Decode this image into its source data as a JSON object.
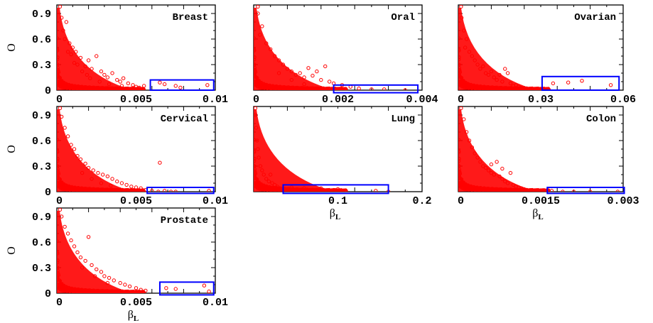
{
  "chart_data": [
    {
      "type": "scatter",
      "title": "Breast",
      "xlabel": "",
      "ylabel": "O",
      "xlim": [
        0,
        0.01
      ],
      "ylim": [
        0,
        1
      ],
      "xticks": [
        "0",
        "0.005",
        "0.01"
      ],
      "yticks": [
        "0",
        "0.3",
        "0.6",
        "0.9"
      ],
      "marker_color": "#ff0000",
      "box_color": "#0000ff",
      "highlight_box": {
        "x": [
          0.0059,
          0.0099
        ],
        "y": [
          0.0,
          0.12
        ]
      },
      "points": [
        [
          0.0002,
          0.98
        ],
        [
          0.0003,
          0.85
        ],
        [
          0.0004,
          0.7
        ],
        [
          0.0006,
          0.8
        ],
        [
          0.0005,
          0.6
        ],
        [
          0.0008,
          0.55
        ],
        [
          0.001,
          0.5
        ],
        [
          0.0009,
          0.42
        ],
        [
          0.0012,
          0.45
        ],
        [
          0.0015,
          0.38
        ],
        [
          0.0013,
          0.3
        ],
        [
          0.0018,
          0.28
        ],
        [
          0.002,
          0.35
        ],
        [
          0.0022,
          0.25
        ],
        [
          0.0025,
          0.4
        ],
        [
          0.0028,
          0.22
        ],
        [
          0.003,
          0.18
        ],
        [
          0.0032,
          0.15
        ],
        [
          0.0035,
          0.2
        ],
        [
          0.0038,
          0.12
        ],
        [
          0.004,
          0.1
        ],
        [
          0.0042,
          0.14
        ],
        [
          0.0045,
          0.08
        ],
        [
          0.0048,
          0.06
        ],
        [
          0.005,
          0.04
        ],
        [
          0.0052,
          0.03
        ],
        [
          0.0055,
          0.05
        ],
        [
          0.0065,
          0.09
        ],
        [
          0.0068,
          0.07
        ],
        [
          0.0075,
          0.05
        ],
        [
          0.0078,
          0.03
        ],
        [
          0.0095,
          0.06
        ],
        [
          0.0016,
          0.22
        ],
        [
          0.0021,
          0.14
        ],
        [
          0.0027,
          0.1
        ],
        [
          0.0033,
          0.07
        ],
        [
          0.0041,
          0.05
        ],
        [
          0.0011,
          0.32
        ],
        [
          0.0007,
          0.45
        ],
        [
          0.0019,
          0.18
        ]
      ]
    },
    {
      "type": "scatter",
      "title": "Oral",
      "xlabel": "",
      "ylabel": "",
      "xlim": [
        0,
        0.004
      ],
      "ylim": [
        0,
        1
      ],
      "xticks": [
        "0",
        "0.002",
        "0.004"
      ],
      "yticks": [],
      "marker_color": "#ff0000",
      "box_color": "#0000ff",
      "highlight_box": {
        "x": [
          0.0019,
          0.0039
        ],
        "y": [
          -0.03,
          0.06
        ]
      },
      "points": [
        [
          0.0001,
          0.98
        ],
        [
          0.0001,
          0.9
        ],
        [
          0.0002,
          0.75
        ],
        [
          0.00015,
          0.65
        ],
        [
          0.0003,
          0.55
        ],
        [
          0.0004,
          0.48
        ],
        [
          0.0005,
          0.4
        ],
        [
          0.0006,
          0.35
        ],
        [
          0.0007,
          0.3
        ],
        [
          0.0008,
          0.25
        ],
        [
          0.0009,
          0.22
        ],
        [
          0.001,
          0.18
        ],
        [
          0.0011,
          0.2
        ],
        [
          0.0012,
          0.15
        ],
        [
          0.0013,
          0.26
        ],
        [
          0.0014,
          0.17
        ],
        [
          0.0015,
          0.22
        ],
        [
          0.0016,
          0.12
        ],
        [
          0.0017,
          0.28
        ],
        [
          0.0018,
          0.1
        ],
        [
          0.0019,
          0.08
        ],
        [
          0.0021,
          0.06
        ],
        [
          0.0023,
          0.04
        ],
        [
          0.0025,
          0.02
        ],
        [
          0.0028,
          0.01
        ],
        [
          0.0031,
          0.01
        ],
        [
          0.0036,
          0.0
        ],
        [
          0.0012,
          0.07
        ],
        [
          0.0009,
          0.12
        ],
        [
          0.0006,
          0.2
        ]
      ]
    },
    {
      "type": "scatter",
      "title": "Ovarian",
      "xlabel": "",
      "ylabel": "",
      "xlim": [
        0,
        0.06
      ],
      "ylim": [
        0,
        1
      ],
      "xticks": [
        "0",
        "0.03",
        "0.06"
      ],
      "yticks": [],
      "marker_color": "#ff0000",
      "box_color": "#0000ff",
      "highlight_box": {
        "x": [
          0.0305,
          0.0585
        ],
        "y": [
          0.0,
          0.16
        ]
      },
      "points": [
        [
          0.001,
          0.98
        ],
        [
          0.0012,
          0.85
        ],
        [
          0.002,
          0.7
        ],
        [
          0.003,
          0.6
        ],
        [
          0.0025,
          0.5
        ],
        [
          0.004,
          0.45
        ],
        [
          0.005,
          0.4
        ],
        [
          0.006,
          0.35
        ],
        [
          0.007,
          0.3
        ],
        [
          0.008,
          0.25
        ],
        [
          0.009,
          0.28
        ],
        [
          0.01,
          0.2
        ],
        [
          0.011,
          0.18
        ],
        [
          0.012,
          0.22
        ],
        [
          0.013,
          0.15
        ],
        [
          0.014,
          0.12
        ],
        [
          0.015,
          0.18
        ],
        [
          0.016,
          0.1
        ],
        [
          0.017,
          0.25
        ],
        [
          0.018,
          0.2
        ],
        [
          0.019,
          0.08
        ],
        [
          0.02,
          0.05
        ],
        [
          0.021,
          0.06
        ],
        [
          0.022,
          0.04
        ],
        [
          0.023,
          0.03
        ],
        [
          0.024,
          0.02
        ],
        [
          0.0345,
          0.08
        ],
        [
          0.04,
          0.09
        ],
        [
          0.045,
          0.11
        ],
        [
          0.0555,
          0.06
        ]
      ]
    },
    {
      "type": "scatter",
      "title": "Cervical",
      "xlabel": "",
      "ylabel": "O",
      "xlim": [
        0,
        0.01
      ],
      "ylim": [
        0,
        1
      ],
      "xticks": [
        "0",
        "0.005",
        "0.01"
      ],
      "yticks": [
        "0",
        "0.3",
        "0.6",
        "0.9"
      ],
      "marker_color": "#ff0000",
      "box_color": "#0000ff",
      "highlight_box": {
        "x": [
          0.0057,
          0.0099
        ],
        "y": [
          -0.02,
          0.05
        ]
      },
      "points": [
        [
          0.0002,
          0.98
        ],
        [
          0.0003,
          0.88
        ],
        [
          0.0005,
          0.75
        ],
        [
          0.0007,
          0.65
        ],
        [
          0.0009,
          0.55
        ],
        [
          0.0011,
          0.5
        ],
        [
          0.0013,
          0.42
        ],
        [
          0.0015,
          0.38
        ],
        [
          0.0018,
          0.33
        ],
        [
          0.002,
          0.28
        ],
        [
          0.0023,
          0.25
        ],
        [
          0.0026,
          0.22
        ],
        [
          0.0029,
          0.2
        ],
        [
          0.0032,
          0.18
        ],
        [
          0.0035,
          0.15
        ],
        [
          0.0038,
          0.12
        ],
        [
          0.0041,
          0.1
        ],
        [
          0.0044,
          0.08
        ],
        [
          0.0047,
          0.06
        ],
        [
          0.005,
          0.05
        ],
        [
          0.0053,
          0.04
        ],
        [
          0.0056,
          0.02
        ],
        [
          0.0065,
          0.34
        ],
        [
          0.006,
          0.01
        ],
        [
          0.0064,
          0.0
        ],
        [
          0.0068,
          0.01
        ],
        [
          0.0072,
          0.0
        ],
        [
          0.0075,
          0.0
        ],
        [
          0.0096,
          0.01
        ],
        [
          0.0016,
          0.22
        ],
        [
          0.0022,
          0.15
        ],
        [
          0.0028,
          0.1
        ],
        [
          0.0034,
          0.07
        ]
      ]
    },
    {
      "type": "scatter",
      "title": "Lung",
      "xlabel": "βL",
      "ylabel": "",
      "xlim": [
        0,
        0.2
      ],
      "ylim": [
        0,
        1
      ],
      "xticks": [
        "0.1",
        "0.2"
      ],
      "yticks": [],
      "marker_color": "#ff0000",
      "box_color": "#0000ff",
      "highlight_box": {
        "x": [
          0.035,
          0.16
        ],
        "y": [
          -0.02,
          0.08
        ]
      },
      "points": [
        [
          0.002,
          0.98
        ],
        [
          0.002,
          0.9
        ],
        [
          0.003,
          0.75
        ],
        [
          0.004,
          0.6
        ],
        [
          0.005,
          0.5
        ],
        [
          0.006,
          0.4
        ],
        [
          0.008,
          0.3
        ],
        [
          0.01,
          0.25
        ],
        [
          0.012,
          0.2
        ],
        [
          0.015,
          0.15
        ],
        [
          0.018,
          0.12
        ],
        [
          0.02,
          0.2
        ],
        [
          0.022,
          0.1
        ],
        [
          0.025,
          0.08
        ],
        [
          0.028,
          0.06
        ],
        [
          0.03,
          0.04
        ],
        [
          0.04,
          0.03
        ],
        [
          0.045,
          0.05
        ],
        [
          0.06,
          0.04
        ],
        [
          0.075,
          0.02
        ],
        [
          0.08,
          0.04
        ],
        [
          0.095,
          0.02
        ],
        [
          0.1,
          0.03
        ],
        [
          0.145,
          0.01
        ],
        [
          0.16,
          0.0
        ]
      ]
    },
    {
      "type": "scatter",
      "title": "Colon",
      "xlabel": "βL",
      "ylabel": "",
      "xlim": [
        0,
        0.003
      ],
      "ylim": [
        0,
        1
      ],
      "xticks": [
        "0",
        "0.0015",
        "0.003"
      ],
      "yticks": [],
      "marker_color": "#ff0000",
      "box_color": "#0000ff",
      "highlight_box": {
        "x": [
          0.00162,
          0.00302
        ],
        "y": [
          -0.02,
          0.05
        ]
      },
      "points": [
        [
          5e-05,
          0.98
        ],
        [
          0.0001,
          0.85
        ],
        [
          0.00015,
          0.7
        ],
        [
          0.0002,
          0.6
        ],
        [
          0.00025,
          0.52
        ],
        [
          0.0003,
          0.45
        ],
        [
          0.00035,
          0.4
        ],
        [
          0.0004,
          0.35
        ],
        [
          0.00045,
          0.3
        ],
        [
          0.0005,
          0.28
        ],
        [
          0.00055,
          0.25
        ],
        [
          0.0006,
          0.22
        ],
        [
          0.00065,
          0.2
        ],
        [
          0.0007,
          0.35
        ],
        [
          0.00075,
          0.18
        ],
        [
          0.0008,
          0.15
        ],
        [
          0.00085,
          0.12
        ],
        [
          0.0009,
          0.1
        ],
        [
          0.00095,
          0.22
        ],
        [
          0.001,
          0.08
        ],
        [
          0.00105,
          0.06
        ],
        [
          0.0011,
          0.05
        ],
        [
          0.00115,
          0.04
        ],
        [
          0.0012,
          0.03
        ],
        [
          0.00125,
          0.02
        ],
        [
          0.0013,
          0.01
        ],
        [
          0.0014,
          0.01
        ],
        [
          0.0017,
          0.01
        ],
        [
          0.0019,
          0.0
        ],
        [
          0.0021,
          0.0
        ],
        [
          0.0024,
          0.0
        ],
        [
          0.0029,
          0.0
        ],
        [
          0.0008,
          0.27
        ],
        [
          0.0006,
          0.32
        ]
      ]
    },
    {
      "type": "scatter",
      "title": "Prostate",
      "xlabel": "βL",
      "ylabel": "O",
      "xlim": [
        0,
        0.01
      ],
      "ylim": [
        0,
        1
      ],
      "xticks": [
        "0",
        "0.005",
        "0.01"
      ],
      "yticks": [
        "0",
        "0.3",
        "0.6",
        "0.9"
      ],
      "marker_color": "#ff0000",
      "box_color": "#0000ff",
      "highlight_box": {
        "x": [
          0.0065,
          0.0099
        ],
        "y": [
          -0.02,
          0.13
        ]
      },
      "points": [
        [
          0.0002,
          0.98
        ],
        [
          0.0003,
          0.9
        ],
        [
          0.0005,
          0.78
        ],
        [
          0.0007,
          0.7
        ],
        [
          0.0009,
          0.62
        ],
        [
          0.0011,
          0.55
        ],
        [
          0.0013,
          0.48
        ],
        [
          0.0015,
          0.42
        ],
        [
          0.0018,
          0.38
        ],
        [
          0.002,
          0.66
        ],
        [
          0.0022,
          0.33
        ],
        [
          0.0025,
          0.28
        ],
        [
          0.0028,
          0.25
        ],
        [
          0.003,
          0.2
        ],
        [
          0.0033,
          0.18
        ],
        [
          0.0036,
          0.15
        ],
        [
          0.004,
          0.12
        ],
        [
          0.0043,
          0.1
        ],
        [
          0.0046,
          0.08
        ],
        [
          0.005,
          0.06
        ],
        [
          0.0053,
          0.04
        ],
        [
          0.0056,
          0.03
        ],
        [
          0.0069,
          0.06
        ],
        [
          0.0075,
          0.05
        ],
        [
          0.0093,
          0.09
        ],
        [
          0.0096,
          0.02
        ],
        [
          0.0016,
          0.3
        ],
        [
          0.0024,
          0.2
        ],
        [
          0.0032,
          0.12
        ]
      ]
    }
  ]
}
